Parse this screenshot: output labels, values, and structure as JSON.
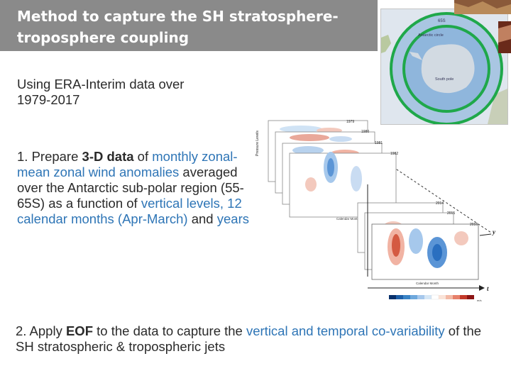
{
  "title": {
    "line1": "Method to capture the SH stratosphere-",
    "line2": "troposphere coupling"
  },
  "subtitle": {
    "line1": "Using ERA-Interim data over",
    "line2": "1979-2017"
  },
  "step1": {
    "prefix": "1. Prepare ",
    "bold": "3-D data",
    "mid1": " of ",
    "blue1": "monthly zonal-mean zonal wind anomalies",
    "mid2": " averaged over the Antarctic sub-polar region (55-65S) as a function of ",
    "blue2": "vertical levels, 12 calendar months (Apr-March)",
    "mid3": " and ",
    "blue3": "years"
  },
  "step2": {
    "prefix": "2. Apply ",
    "bold": "EOF",
    "mid": " to the data to capture the ",
    "blue": "vertical and temporal co-variability",
    "suffix": " of the SH stratospheric & tropospheric jets"
  },
  "map": {
    "labels": [
      "65S",
      "Antarctic circle",
      "South pole"
    ]
  },
  "figure": {
    "year_labels": [
      "1979",
      "1980",
      "1981",
      "1982",
      "2014",
      "2015",
      "2016"
    ],
    "y_axis_label": "Pressure Levels",
    "x_axis_label": "Calendar Month",
    "month_ticks": [
      "Apr",
      "May",
      "Jun",
      "Jul",
      "Aug",
      "Sep",
      "Oct",
      "Nov",
      "Dec",
      "Jan",
      "Feb",
      "Mar"
    ],
    "pressure_ticks": [
      "1",
      "2",
      "3",
      "5",
      "7",
      "10",
      "20",
      "30",
      "50",
      "70",
      "100",
      "125",
      "150",
      "175",
      "200",
      "225",
      "250",
      "300",
      "350",
      "400",
      "450",
      "500",
      "550",
      "600",
      "650",
      "700",
      "750",
      "775",
      "800",
      "825",
      "850",
      "875",
      "900",
      "925",
      "950",
      "975",
      "1000"
    ],
    "axis_y": "y",
    "axis_t": "t",
    "colorbar_ticks": [
      "-30",
      "-22",
      "-15",
      "-10",
      "-5",
      "-2",
      "2",
      "5",
      "10",
      "15",
      "22",
      "30"
    ],
    "colorbar_unit": "m/s",
    "colors": {
      "negative": "#2a6fc0",
      "positive": "#c43a2a"
    }
  }
}
